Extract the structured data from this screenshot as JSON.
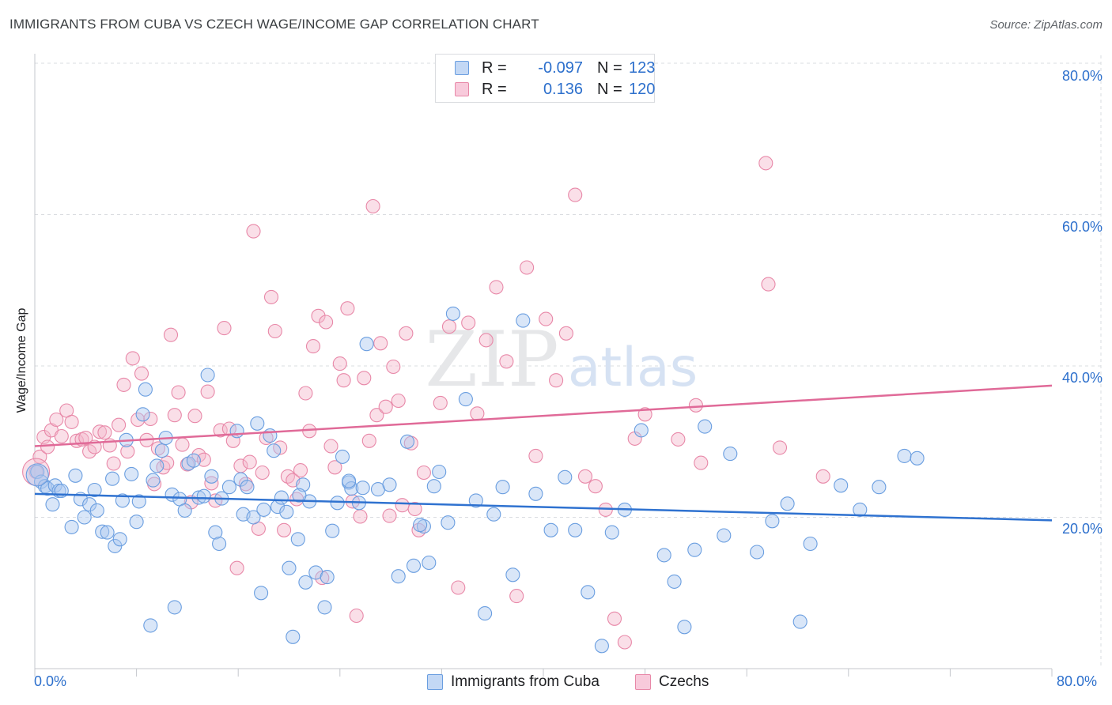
{
  "title": "IMMIGRANTS FROM CUBA VS CZECH WAGE/INCOME GAP CORRELATION CHART",
  "source": "Source: ZipAtlas.com",
  "watermark": {
    "zip": "ZIP",
    "atlas": "atlas"
  },
  "legend_top": [
    {
      "r_label": "R =",
      "r_value": "-0.097",
      "n_label": "N =",
      "n_value": "123"
    },
    {
      "r_label": "R =",
      "r_value": "0.136",
      "n_label": "N =",
      "n_value": "120"
    }
  ],
  "legend_bottom": [
    "Immigrants from Cuba",
    "Czechs"
  ],
  "colors": {
    "blue_fill": "#aac8f0",
    "blue_stroke": "#6a9ee0",
    "blue_line": "#2f72d0",
    "pink_fill": "#f5b8cc",
    "pink_stroke": "#e888a8",
    "pink_line": "#e06a98",
    "tick_text": "#2c6fcc",
    "grid": "#dadce0"
  },
  "chart_data": {
    "type": "scatter",
    "title": "IMMIGRANTS FROM CUBA VS CZECH WAGE/INCOME GAP CORRELATION CHART",
    "xlabel": "",
    "ylabel": "Wage/Income Gap",
    "xlim": [
      0,
      80
    ],
    "ylim": [
      0,
      80
    ],
    "x_tick_labels": [
      "0.0%",
      "80.0%"
    ],
    "y_tick_labels": [
      {
        "value": 80,
        "label": "80.0%"
      },
      {
        "value": 60,
        "label": "60.0%"
      },
      {
        "value": 40,
        "label": "40.0%"
      },
      {
        "value": 20,
        "label": "20.0%"
      }
    ],
    "series": [
      {
        "name": "Immigrants from Cuba",
        "r": -0.097,
        "n": 123,
        "trend": {
          "x": [
            0,
            80
          ],
          "y": [
            23.1,
            19.6
          ]
        },
        "points": [
          [
            0.2,
            26.0
          ],
          [
            0.5,
            24.7
          ],
          [
            0.8,
            24.1
          ],
          [
            1.0,
            23.8
          ],
          [
            1.4,
            21.7
          ],
          [
            1.6,
            24.2
          ],
          [
            1.9,
            23.5
          ],
          [
            2.1,
            23.5
          ],
          [
            2.9,
            18.7
          ],
          [
            3.2,
            25.5
          ],
          [
            3.6,
            22.4
          ],
          [
            3.9,
            20.0
          ],
          [
            4.3,
            21.7
          ],
          [
            4.7,
            23.6
          ],
          [
            4.9,
            20.9
          ],
          [
            5.3,
            18.1
          ],
          [
            5.7,
            18.0
          ],
          [
            6.1,
            25.1
          ],
          [
            6.3,
            16.2
          ],
          [
            6.7,
            17.1
          ],
          [
            6.9,
            22.2
          ],
          [
            7.2,
            30.2
          ],
          [
            7.6,
            25.7
          ],
          [
            8.0,
            19.4
          ],
          [
            8.2,
            22.1
          ],
          [
            8.5,
            33.6
          ],
          [
            8.7,
            36.9
          ],
          [
            9.1,
            5.7
          ],
          [
            9.3,
            24.9
          ],
          [
            9.6,
            26.8
          ],
          [
            10.0,
            28.8
          ],
          [
            10.3,
            30.5
          ],
          [
            10.8,
            23.0
          ],
          [
            11.0,
            8.1
          ],
          [
            11.4,
            22.4
          ],
          [
            11.8,
            20.9
          ],
          [
            12.1,
            27.1
          ],
          [
            12.5,
            27.5
          ],
          [
            12.9,
            22.6
          ],
          [
            13.3,
            22.8
          ],
          [
            13.6,
            38.8
          ],
          [
            13.9,
            25.4
          ],
          [
            14.2,
            18.0
          ],
          [
            14.5,
            16.5
          ],
          [
            14.7,
            22.5
          ],
          [
            15.3,
            24.0
          ],
          [
            15.9,
            31.4
          ],
          [
            16.2,
            25.0
          ],
          [
            16.4,
            20.4
          ],
          [
            16.7,
            24.0
          ],
          [
            17.2,
            20.0
          ],
          [
            17.5,
            32.4
          ],
          [
            17.8,
            10.0
          ],
          [
            18.0,
            21.0
          ],
          [
            18.5,
            30.8
          ],
          [
            18.8,
            28.8
          ],
          [
            19.1,
            21.4
          ],
          [
            19.4,
            22.6
          ],
          [
            19.8,
            20.7
          ],
          [
            20.0,
            13.3
          ],
          [
            20.3,
            4.2
          ],
          [
            20.7,
            17.1
          ],
          [
            21.1,
            24.3
          ],
          [
            21.3,
            11.4
          ],
          [
            21.6,
            22.1
          ],
          [
            22.1,
            12.7
          ],
          [
            22.8,
            8.1
          ],
          [
            23.0,
            12.1
          ],
          [
            23.4,
            18.2
          ],
          [
            23.8,
            21.9
          ],
          [
            24.2,
            28.0
          ],
          [
            24.7,
            24.6
          ],
          [
            24.9,
            23.8
          ],
          [
            25.5,
            21.9
          ],
          [
            25.8,
            23.9
          ],
          [
            26.1,
            42.9
          ],
          [
            27.0,
            23.7
          ],
          [
            27.9,
            24.3
          ],
          [
            28.6,
            12.2
          ],
          [
            29.3,
            30.0
          ],
          [
            29.8,
            13.6
          ],
          [
            30.6,
            18.8
          ],
          [
            31.0,
            14.0
          ],
          [
            31.4,
            24.1
          ],
          [
            31.8,
            26.0
          ],
          [
            32.5,
            19.3
          ],
          [
            32.9,
            46.9
          ],
          [
            33.9,
            35.6
          ],
          [
            34.7,
            22.2
          ],
          [
            35.4,
            7.3
          ],
          [
            36.1,
            20.4
          ],
          [
            36.8,
            24.0
          ],
          [
            37.6,
            12.4
          ],
          [
            38.4,
            46.0
          ],
          [
            39.4,
            23.1
          ],
          [
            40.6,
            18.3
          ],
          [
            41.7,
            25.3
          ],
          [
            42.5,
            18.3
          ],
          [
            43.5,
            10.1
          ],
          [
            44.6,
            3.0
          ],
          [
            45.4,
            18.0
          ],
          [
            46.4,
            21.0
          ],
          [
            47.7,
            31.5
          ],
          [
            49.5,
            15.0
          ],
          [
            50.3,
            11.5
          ],
          [
            51.1,
            5.5
          ],
          [
            51.9,
            15.7
          ],
          [
            52.7,
            32.0
          ],
          [
            54.2,
            17.6
          ],
          [
            54.7,
            28.4
          ],
          [
            56.8,
            15.4
          ],
          [
            58.0,
            19.5
          ],
          [
            59.2,
            21.8
          ],
          [
            60.2,
            6.2
          ],
          [
            61.0,
            16.5
          ],
          [
            63.4,
            24.2
          ],
          [
            64.9,
            21.0
          ],
          [
            66.4,
            24.0
          ],
          [
            68.4,
            28.1
          ],
          [
            69.4,
            27.8
          ],
          [
            20.8,
            22.9
          ],
          [
            24.7,
            24.8
          ],
          [
            30.3,
            19.0
          ]
        ]
      },
      {
        "name": "Czechs",
        "r": 0.136,
        "n": 120,
        "trend": {
          "x": [
            0,
            80
          ],
          "y": [
            29.4,
            37.4
          ]
        },
        "points": [
          [
            0.1,
            26.0
          ],
          [
            0.4,
            28.0
          ],
          [
            0.7,
            30.6
          ],
          [
            1.0,
            29.3
          ],
          [
            1.3,
            31.5
          ],
          [
            1.7,
            32.9
          ],
          [
            2.1,
            30.7
          ],
          [
            2.5,
            34.1
          ],
          [
            2.9,
            32.6
          ],
          [
            3.3,
            30.1
          ],
          [
            3.7,
            30.3
          ],
          [
            4.0,
            30.5
          ],
          [
            4.3,
            28.7
          ],
          [
            4.7,
            29.3
          ],
          [
            5.1,
            31.3
          ],
          [
            5.5,
            31.2
          ],
          [
            5.9,
            29.5
          ],
          [
            6.2,
            27.1
          ],
          [
            6.6,
            32.2
          ],
          [
            7.0,
            37.5
          ],
          [
            7.3,
            28.7
          ],
          [
            7.7,
            41.0
          ],
          [
            8.1,
            32.9
          ],
          [
            8.4,
            39.0
          ],
          [
            8.8,
            30.2
          ],
          [
            9.1,
            33.0
          ],
          [
            9.4,
            24.4
          ],
          [
            9.7,
            29.1
          ],
          [
            10.1,
            26.6
          ],
          [
            10.4,
            27.2
          ],
          [
            10.7,
            44.1
          ],
          [
            11.0,
            33.5
          ],
          [
            11.3,
            36.5
          ],
          [
            11.6,
            29.6
          ],
          [
            12.0,
            27.0
          ],
          [
            12.3,
            22.0
          ],
          [
            12.6,
            33.4
          ],
          [
            12.9,
            28.2
          ],
          [
            13.3,
            27.6
          ],
          [
            13.6,
            36.6
          ],
          [
            13.9,
            24.5
          ],
          [
            14.2,
            22.2
          ],
          [
            14.6,
            31.5
          ],
          [
            14.9,
            45.0
          ],
          [
            15.3,
            31.7
          ],
          [
            15.6,
            30.1
          ],
          [
            15.9,
            13.3
          ],
          [
            16.2,
            26.8
          ],
          [
            16.6,
            24.4
          ],
          [
            16.9,
            27.3
          ],
          [
            17.2,
            57.8
          ],
          [
            17.6,
            18.5
          ],
          [
            17.9,
            25.9
          ],
          [
            18.2,
            30.5
          ],
          [
            18.6,
            49.1
          ],
          [
            18.9,
            44.6
          ],
          [
            19.3,
            29.2
          ],
          [
            19.6,
            18.3
          ],
          [
            19.9,
            25.4
          ],
          [
            20.3,
            24.9
          ],
          [
            20.6,
            22.4
          ],
          [
            20.9,
            26.2
          ],
          [
            21.3,
            36.4
          ],
          [
            21.6,
            31.4
          ],
          [
            21.9,
            42.6
          ],
          [
            22.3,
            46.6
          ],
          [
            22.6,
            12.0
          ],
          [
            22.9,
            45.8
          ],
          [
            23.3,
            29.4
          ],
          [
            23.6,
            26.6
          ],
          [
            24.0,
            40.3
          ],
          [
            24.3,
            38.1
          ],
          [
            24.6,
            47.6
          ],
          [
            25.0,
            22.1
          ],
          [
            25.3,
            7.0
          ],
          [
            25.6,
            20.1
          ],
          [
            25.9,
            38.4
          ],
          [
            26.3,
            30.1
          ],
          [
            26.6,
            61.1
          ],
          [
            26.9,
            33.5
          ],
          [
            27.2,
            43.0
          ],
          [
            27.6,
            34.6
          ],
          [
            27.9,
            20.2
          ],
          [
            28.2,
            39.9
          ],
          [
            28.6,
            35.4
          ],
          [
            28.9,
            21.6
          ],
          [
            29.2,
            44.3
          ],
          [
            29.6,
            29.8
          ],
          [
            29.9,
            21.1
          ],
          [
            30.2,
            18.3
          ],
          [
            30.6,
            25.9
          ],
          [
            31.9,
            35.1
          ],
          [
            32.6,
            45.2
          ],
          [
            33.3,
            10.7
          ],
          [
            34.1,
            45.7
          ],
          [
            34.8,
            33.7
          ],
          [
            35.5,
            43.4
          ],
          [
            36.3,
            50.4
          ],
          [
            37.1,
            40.6
          ],
          [
            37.9,
            9.6
          ],
          [
            38.7,
            53.0
          ],
          [
            39.4,
            28.1
          ],
          [
            40.2,
            46.2
          ],
          [
            41.0,
            38.1
          ],
          [
            41.8,
            44.3
          ],
          [
            42.5,
            62.6
          ],
          [
            43.3,
            25.4
          ],
          [
            44.1,
            24.1
          ],
          [
            44.9,
            21.0
          ],
          [
            45.6,
            6.6
          ],
          [
            46.4,
            3.5
          ],
          [
            47.2,
            30.4
          ],
          [
            48.0,
            33.6
          ],
          [
            50.6,
            30.3
          ],
          [
            52.4,
            27.2
          ],
          [
            57.5,
            66.8
          ],
          [
            57.7,
            50.8
          ],
          [
            52.0,
            34.8
          ],
          [
            58.6,
            29.2
          ],
          [
            62.0,
            25.4
          ]
        ]
      }
    ]
  }
}
